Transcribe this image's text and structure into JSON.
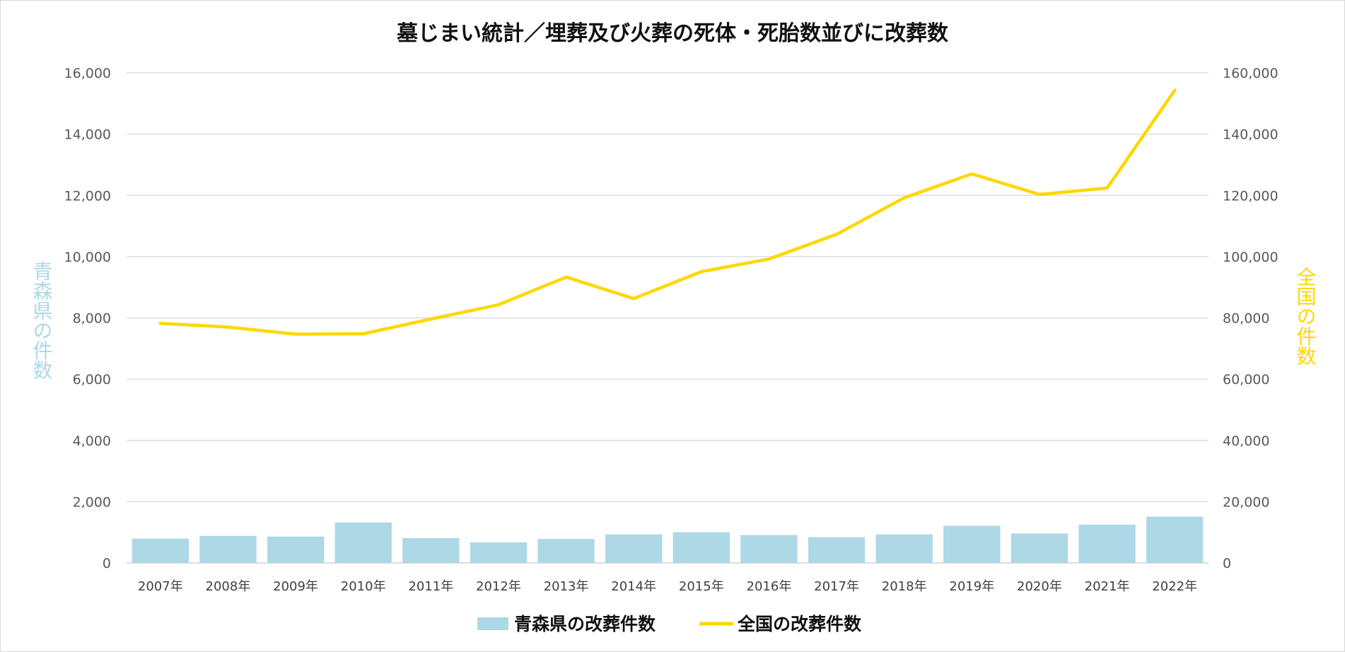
{
  "chart_data": {
    "type": "bar+line",
    "title": "墓じまい統計／埋葬及び火葬の死体・死胎数並びに改葬数",
    "categories": [
      "2007年",
      "2008年",
      "2009年",
      "2010年",
      "2011年",
      "2012年",
      "2013年",
      "2014年",
      "2015年",
      "2016年",
      "2017年",
      "2018年",
      "2019年",
      "2020年",
      "2021年",
      "2022年"
    ],
    "series": [
      {
        "name": "青森県の改葬件数",
        "type": "bar",
        "axis": "left",
        "color": "#add8e6",
        "values": [
          790,
          880,
          860,
          1320,
          810,
          670,
          780,
          930,
          1000,
          910,
          840,
          930,
          1210,
          960,
          1250,
          1510
        ]
      },
      {
        "name": "全国の改葬件数",
        "type": "line",
        "axis": "right",
        "color": "#ffd700",
        "values": [
          78200,
          77000,
          74700,
          74800,
          79600,
          84300,
          93300,
          86300,
          95100,
          99200,
          107300,
          119200,
          127000,
          120300,
          122400,
          154300
        ]
      }
    ],
    "y_left": {
      "label": "青森県の件数",
      "label_color": "#add8e6",
      "range": [
        0,
        16000
      ],
      "ticks": [
        "0",
        "2,000",
        "4,000",
        "6,000",
        "8,000",
        "10,000",
        "12,000",
        "14,000",
        "16,000"
      ]
    },
    "y_right": {
      "label": "全国の件数",
      "label_color": "#ffd700",
      "range": [
        0,
        160000
      ],
      "ticks": [
        "0",
        "20,000",
        "40,000",
        "60,000",
        "80,000",
        "100,000",
        "120,000",
        "140,000",
        "160,000"
      ]
    },
    "grid": true,
    "legend": "bottom"
  }
}
